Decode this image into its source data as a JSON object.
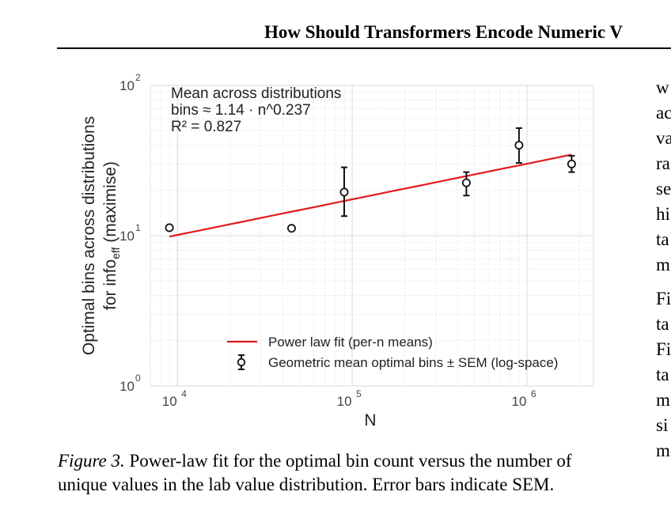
{
  "header": {
    "running_title": "How Should Transformers Encode Numeric V"
  },
  "figure": {
    "caption_label": "Figure 3.",
    "caption_text": " Power-law fit for the optimal bin count versus the number of unique values in the lab value distribution. Error bars indicate SEM."
  },
  "chart_data": {
    "type": "scatter",
    "xlabel": "N",
    "ylabel_line1": "Optimal bins across distributions",
    "ylabel_line2_prefix": "for info",
    "ylabel_line2_sub": "eff",
    "ylabel_line2_suffix": " (maximise)",
    "x_scale": "log",
    "y_scale": "log",
    "xlim": [
      7000,
      2400000
    ],
    "ylim": [
      1,
      100
    ],
    "x_ticks": [
      {
        "value": 10000,
        "base": "10",
        "exp": "4"
      },
      {
        "value": 100000,
        "base": "10",
        "exp": "5"
      },
      {
        "value": 1000000,
        "base": "10",
        "exp": "6"
      }
    ],
    "y_ticks": [
      {
        "value": 1,
        "base": "10",
        "exp": "0"
      },
      {
        "value": 10,
        "base": "10",
        "exp": "1"
      },
      {
        "value": 100,
        "base": "10",
        "exp": "2"
      }
    ],
    "grid": true,
    "annotation": [
      "Mean across distributions",
      "bins ≈ 1.14 · n^0.237",
      "R² = 0.827"
    ],
    "fit": {
      "name": "Power law fit (per-n means)",
      "a": 1.14,
      "b": 0.237,
      "x_range": [
        9000,
        1800000
      ],
      "color": "#e31a1c"
    },
    "series": [
      {
        "name": "Geometric mean optimal bins ± SEM (log-space)",
        "points": [
          {
            "x": 9000,
            "y": 11.3,
            "lo": 11.3,
            "hi": 11.3
          },
          {
            "x": 45000,
            "y": 11.2,
            "lo": 11.2,
            "hi": 11.2
          },
          {
            "x": 90000,
            "y": 19.5,
            "lo": 13.5,
            "hi": 28.5
          },
          {
            "x": 450000,
            "y": 22.5,
            "lo": 18.5,
            "hi": 26.5
          },
          {
            "x": 900000,
            "y": 40,
            "lo": 30.5,
            "hi": 52
          },
          {
            "x": 1800000,
            "y": 30,
            "lo": 26.5,
            "hi": 34
          }
        ]
      }
    ],
    "legend_position": "bottom-right"
  },
  "right_column": {
    "lines": [
      "w",
      "ac",
      "va",
      "ra",
      "se",
      "hi",
      "ta",
      "m",
      "",
      "Fi",
      "ta",
      "Fi",
      "ta",
      "m",
      "si",
      "m"
    ]
  }
}
